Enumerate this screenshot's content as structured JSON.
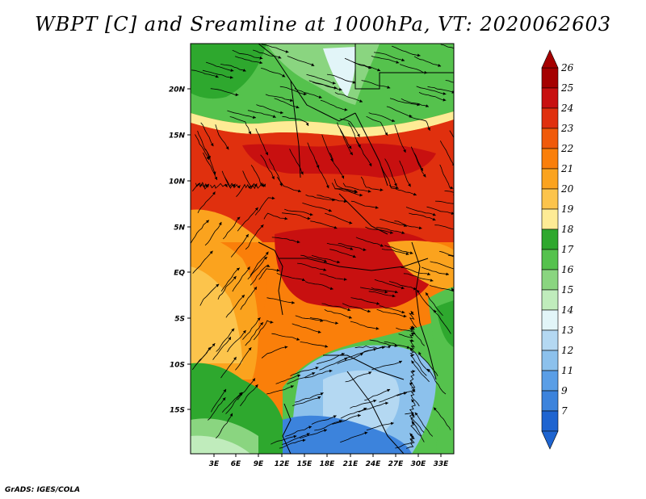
{
  "title": "WBPT [C] and Sreamline at 1000hPa, VT: 2020062603",
  "credit": "GrADS: IGES/COLA",
  "map": {
    "lat_labels": [
      "20N",
      "15N",
      "10N",
      "5N",
      "EQ",
      "5S",
      "10S",
      "15S"
    ],
    "lon_labels": [
      "3E",
      "6E",
      "9E",
      "12E",
      "15E",
      "18E",
      "21E",
      "24E",
      "27E",
      "30E",
      "33E"
    ],
    "lon_range": [
      0,
      34.5
    ],
    "lat_range": [
      -20,
      25
    ]
  },
  "colorbar": {
    "labels": [
      "26",
      "25",
      "24",
      "23",
      "22",
      "21",
      "20",
      "19",
      "18",
      "17",
      "16",
      "15",
      "14",
      "13",
      "12",
      "11",
      "9",
      "7"
    ],
    "colors": [
      "#a50000",
      "#c81010",
      "#e0300e",
      "#f05a0a",
      "#fa7f0a",
      "#fba31e",
      "#fcc44c",
      "#feeb95",
      "#2ea82e",
      "#55c24d",
      "#8ad580",
      "#c0ecbc",
      "#e2f5f8",
      "#b4d8f2",
      "#8cc1ec",
      "#5a9ee6",
      "#3c83dc",
      "#1e64d0"
    ]
  }
}
